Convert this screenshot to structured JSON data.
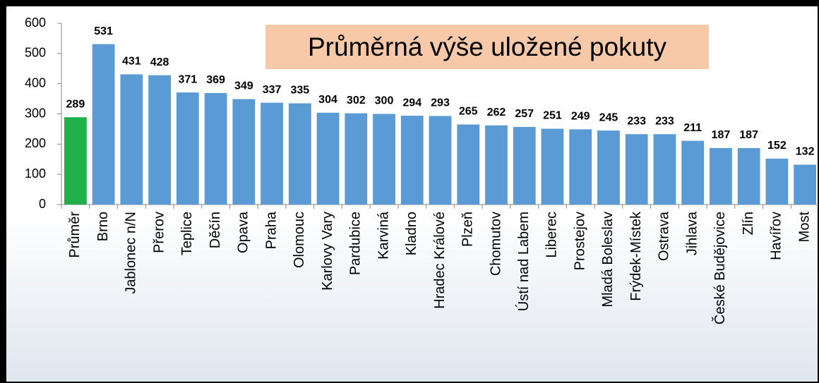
{
  "chart_data": {
    "type": "bar",
    "title": "Průměrná výše uložené pokuty",
    "categories": [
      "Průměr",
      "Brno",
      "Jablonec n/N",
      "Přerov",
      "Teplice",
      "Děčín",
      "Opava",
      "Praha",
      "Olomouc",
      "Karlovy Vary",
      "Pardubice",
      "Karviná",
      "Kladno",
      "Hradec Králové",
      "Plzeň",
      "Chomutov",
      "Ústí nad Labem",
      "Liberec",
      "Prostejov",
      "Mladá Boleslav",
      "Frýdek-Místek",
      "Ostrava",
      "Jihlava",
      "České Budějovice",
      "Zlín",
      "Havířov",
      "Most"
    ],
    "values": [
      289,
      531,
      431,
      428,
      371,
      369,
      349,
      337,
      335,
      304,
      302,
      300,
      294,
      293,
      265,
      262,
      257,
      251,
      249,
      245,
      233,
      233,
      211,
      187,
      187,
      152,
      132
    ],
    "colors": [
      "#1db04b",
      "#5b9bd5",
      "#5b9bd5",
      "#5b9bd5",
      "#5b9bd5",
      "#5b9bd5",
      "#5b9bd5",
      "#5b9bd5",
      "#5b9bd5",
      "#5b9bd5",
      "#5b9bd5",
      "#5b9bd5",
      "#5b9bd5",
      "#5b9bd5",
      "#5b9bd5",
      "#5b9bd5",
      "#5b9bd5",
      "#5b9bd5",
      "#5b9bd5",
      "#5b9bd5",
      "#5b9bd5",
      "#5b9bd5",
      "#5b9bd5",
      "#5b9bd5",
      "#5b9bd5",
      "#5b9bd5",
      "#5b9bd5"
    ],
    "ylim": [
      0,
      600
    ],
    "yticks": [
      0,
      100,
      200,
      300,
      400,
      500,
      600
    ],
    "grid": false
  }
}
